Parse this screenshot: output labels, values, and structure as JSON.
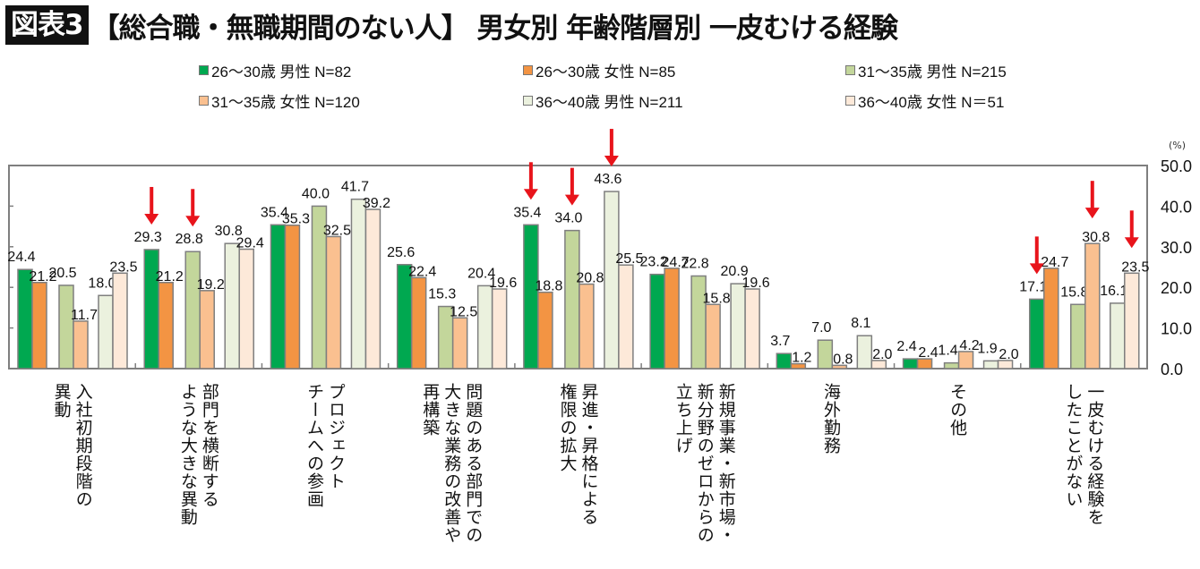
{
  "header": {
    "badge": "図表3",
    "title": "【総合職・無職期間のない人】 男女別 年齢階層別 一皮むける経験"
  },
  "chart_data": {
    "type": "bar",
    "title": "【総合職・無職期間のない人】 男女別 年齢階層別 一皮むける経験",
    "xlabel": "",
    "ylabel": "(%)",
    "ylim": [
      0,
      50
    ],
    "yticks": [
      "0.0",
      "10.0",
      "20.0",
      "30.0",
      "40.0",
      "50.0"
    ],
    "y_axis_side": "right",
    "legend_placement": "top",
    "categories": [
      "入社初期段階の\n異動",
      "部門を横断する\nような大きな異動",
      "プロジェクト\nチームへの参画",
      "問題のある部門での\n大きな業務の改善や\n再構築",
      "昇進・昇格による\n権限の拡大",
      "新規事業・新市場・\n新分野のゼロからの\n立ち上げ",
      "海外勤務",
      "その他",
      "一皮むける経験を\nしたことがない"
    ],
    "series": [
      {
        "name": "26〜30歳 男性 N=82",
        "color": "#00a850",
        "values": [
          24.4,
          29.3,
          35.4,
          25.6,
          35.4,
          23.2,
          3.7,
          2.4,
          17.1
        ]
      },
      {
        "name": "26〜30歳 女性 N=85",
        "color": "#f39443",
        "values": [
          21.2,
          21.2,
          35.3,
          22.4,
          18.8,
          24.7,
          1.2,
          2.4,
          24.7
        ]
      },
      {
        "name": "31〜35歳 男性 N=215",
        "color": "#c3d69b",
        "values": [
          20.5,
          28.8,
          40.0,
          15.3,
          34.0,
          22.8,
          7.0,
          1.4,
          15.8
        ]
      },
      {
        "name": "31〜35歳 女性 N=120",
        "color": "#fac090",
        "values": [
          11.7,
          19.2,
          32.5,
          12.5,
          20.8,
          15.8,
          0.8,
          4.2,
          30.8
        ]
      },
      {
        "name": "36〜40歳 男性 N=211",
        "color": "#ebf1de",
        "values": [
          18.0,
          30.8,
          41.7,
          20.4,
          43.6,
          20.9,
          8.1,
          1.9,
          16.1
        ]
      },
      {
        "name": "36〜40歳 女性 N＝51",
        "color": "#fde9d9",
        "values": [
          23.5,
          29.4,
          39.2,
          19.6,
          25.5,
          19.6,
          2.0,
          2.0,
          23.5
        ]
      }
    ],
    "annotations": [
      {
        "type": "arrow",
        "category": 1,
        "series": 0
      },
      {
        "type": "arrow",
        "category": 1,
        "series": 2
      },
      {
        "type": "arrow",
        "category": 4,
        "series": 0
      },
      {
        "type": "arrow",
        "category": 4,
        "series": 2
      },
      {
        "type": "arrow",
        "category": 4,
        "series": 4
      },
      {
        "type": "arrow",
        "category": 8,
        "series": 0
      },
      {
        "type": "arrow",
        "category": 8,
        "series": 3
      },
      {
        "type": "arrow",
        "category": 8,
        "series": 5
      }
    ],
    "annotation_color": "#e8141b"
  }
}
